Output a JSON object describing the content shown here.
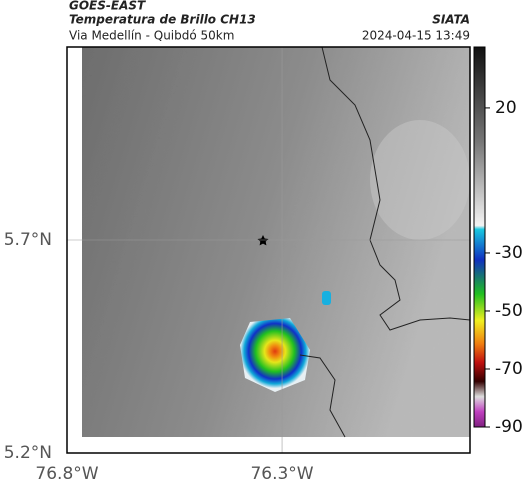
{
  "header": {
    "title": "GOES-EAST",
    "subtitle": "Temperatura de Brillo CH13",
    "org": "SIATA",
    "location": "Via Medellín - Quibdó 50km",
    "datetime": "2024-04-15 13:49"
  },
  "map": {
    "xlim": [
      -76.8,
      -75.863
    ],
    "ylim": [
      5.2,
      6.153
    ],
    "xticks": [
      {
        "value": -76.8,
        "label": "76.8°W"
      },
      {
        "value": -76.3,
        "label": "76.3°W"
      }
    ],
    "yticks": [
      {
        "value": 5.7,
        "label": "5.7°N"
      },
      {
        "value": 5.2,
        "label": "5.2°N"
      }
    ]
  },
  "colorbar": {
    "range": [
      -90,
      41
    ],
    "ticks": [
      20,
      -30,
      -50,
      -70,
      -90
    ]
  }
}
